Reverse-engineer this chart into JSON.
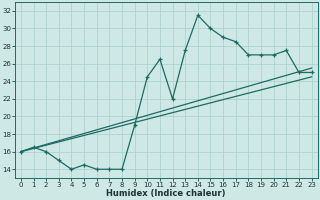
{
  "xlabel": "Humidex (Indice chaleur)",
  "bg_color": "#cde8e5",
  "grid_color": "#aacfcc",
  "line_color": "#1e6b63",
  "xlim": [
    -0.5,
    23.5
  ],
  "ylim": [
    13.0,
    33.0
  ],
  "xticks": [
    0,
    1,
    2,
    3,
    4,
    5,
    6,
    7,
    8,
    9,
    10,
    11,
    12,
    13,
    14,
    15,
    16,
    17,
    18,
    19,
    20,
    21,
    22,
    23
  ],
  "yticks": [
    14,
    16,
    18,
    20,
    22,
    24,
    26,
    28,
    30,
    32
  ],
  "humidex_line": {
    "x": [
      0,
      1,
      2,
      3,
      4,
      5,
      6,
      7,
      8,
      9,
      10,
      11,
      12,
      13,
      14,
      15,
      16,
      17,
      18,
      19,
      20,
      21,
      22,
      23
    ],
    "y": [
      16,
      16.5,
      16,
      15,
      14,
      14.5,
      14,
      14,
      14,
      19,
      24.5,
      26.5,
      22,
      27.5,
      31.5,
      30,
      29,
      28.5,
      27,
      27,
      27,
      27.5,
      25,
      25
    ]
  },
  "line2": {
    "x": [
      0,
      23
    ],
    "y": [
      16,
      25.5
    ]
  },
  "line3": {
    "x": [
      0,
      23
    ],
    "y": [
      16,
      24.5
    ]
  },
  "xlabel_fontsize": 6.0,
  "tick_fontsize": 5.0
}
